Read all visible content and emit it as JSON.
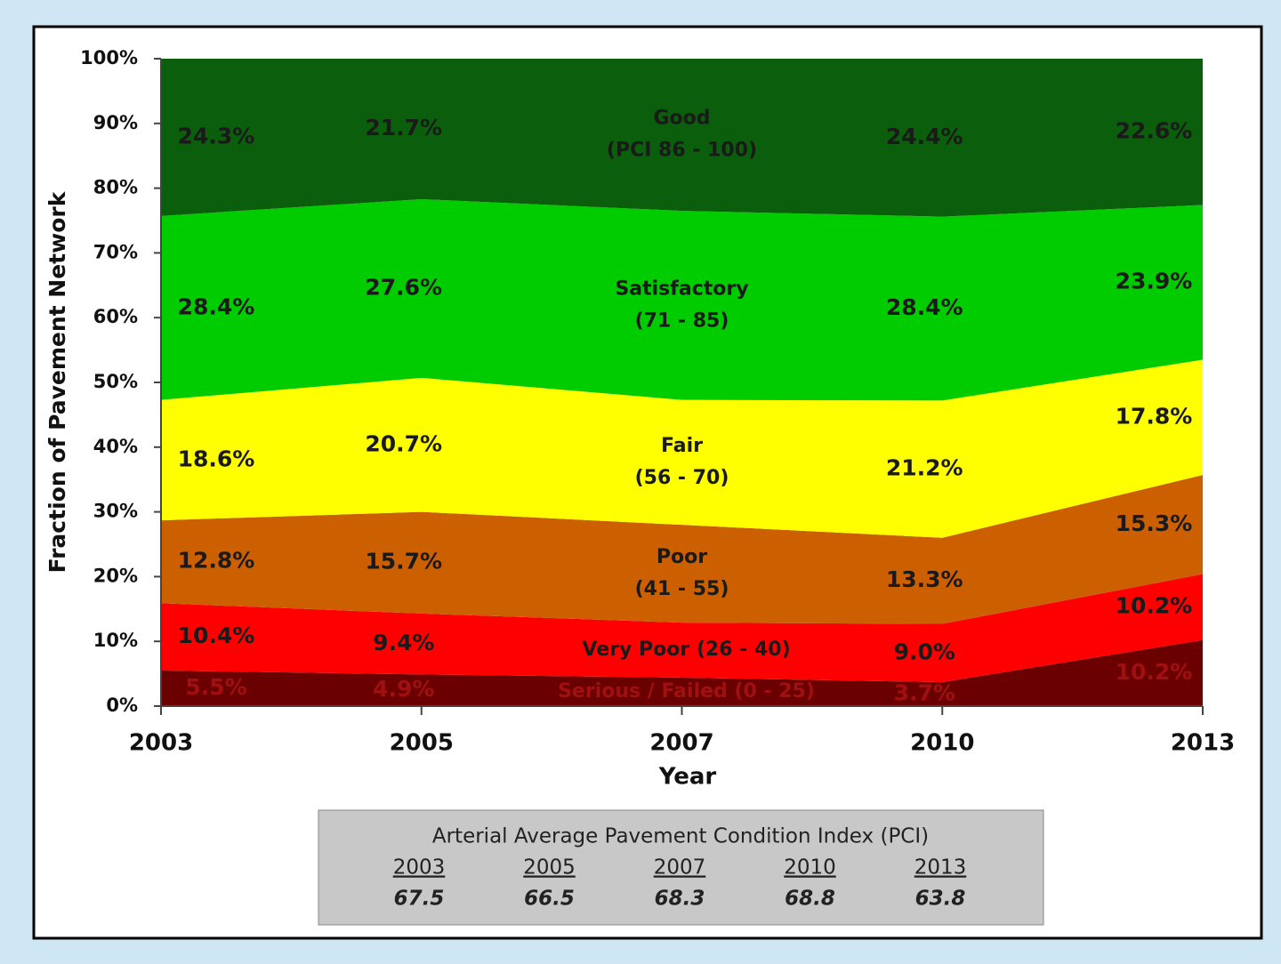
{
  "chart_data": {
    "type": "stacked-area",
    "categories": [
      "2003",
      "2005",
      "2007",
      "2010",
      "2013"
    ],
    "x_label": "Year",
    "y_label": "Fraction of Pavement Network",
    "ylim": [
      0,
      100
    ],
    "yticks": [
      {
        "value": 0,
        "label": "0%"
      },
      {
        "value": 10,
        "label": "10%"
      },
      {
        "value": 20,
        "label": "20%"
      },
      {
        "value": 30,
        "label": "30%"
      },
      {
        "value": 40,
        "label": "40%"
      },
      {
        "value": 50,
        "label": "50%"
      },
      {
        "value": 60,
        "label": "60%"
      },
      {
        "value": 70,
        "label": "70%"
      },
      {
        "value": 80,
        "label": "80%"
      },
      {
        "value": 90,
        "label": "90%"
      },
      {
        "value": 100,
        "label": "100%"
      }
    ],
    "series": [
      {
        "name": "Serious / Failed (0 - 25)",
        "color": "#6b0000",
        "values": [
          5.5,
          4.9,
          4.4,
          3.7,
          10.2
        ],
        "value_labels": [
          "5.5%",
          "4.9%",
          null,
          "3.7%",
          "10.2%"
        ]
      },
      {
        "name": "Very Poor (26 - 40)",
        "color": "#ff0000",
        "values": [
          10.4,
          9.4,
          8.5,
          9.0,
          10.2
        ],
        "value_labels": [
          "10.4%",
          "9.4%",
          null,
          "9.0%",
          "10.2%"
        ]
      },
      {
        "name": "Poor",
        "range": "(41 - 55)",
        "color": "#cc5f00",
        "values": [
          12.8,
          15.7,
          15.1,
          13.3,
          15.3
        ],
        "value_labels": [
          "12.8%",
          "15.7%",
          null,
          "13.3%",
          "15.3%"
        ]
      },
      {
        "name": "Fair",
        "range": "(56 - 70)",
        "color": "#ffff00",
        "values": [
          18.6,
          20.7,
          19.3,
          21.2,
          17.8
        ],
        "value_labels": [
          "18.6%",
          "20.7%",
          null,
          "21.2%",
          "17.8%"
        ]
      },
      {
        "name": "Satisfactory",
        "range": "(71 - 85)",
        "color": "#00cc00",
        "values": [
          28.4,
          27.6,
          29.2,
          28.4,
          23.9
        ],
        "value_labels": [
          "28.4%",
          "27.6%",
          null,
          "28.4%",
          "23.9%"
        ]
      },
      {
        "name": "Good",
        "range": "(PCI 86 - 100)",
        "color": "#0b5e0b",
        "values": [
          24.3,
          21.7,
          23.5,
          24.4,
          22.6
        ],
        "value_labels": [
          "24.3%",
          "21.7%",
          null,
          "24.4%",
          "22.6%"
        ]
      }
    ]
  },
  "pci_table": {
    "title": "Arterial Average Pavement Condition Index (PCI)",
    "years": [
      "2003",
      "2005",
      "2007",
      "2010",
      "2013"
    ],
    "values": [
      "67.5",
      "66.5",
      "68.3",
      "68.8",
      "63.8"
    ]
  }
}
